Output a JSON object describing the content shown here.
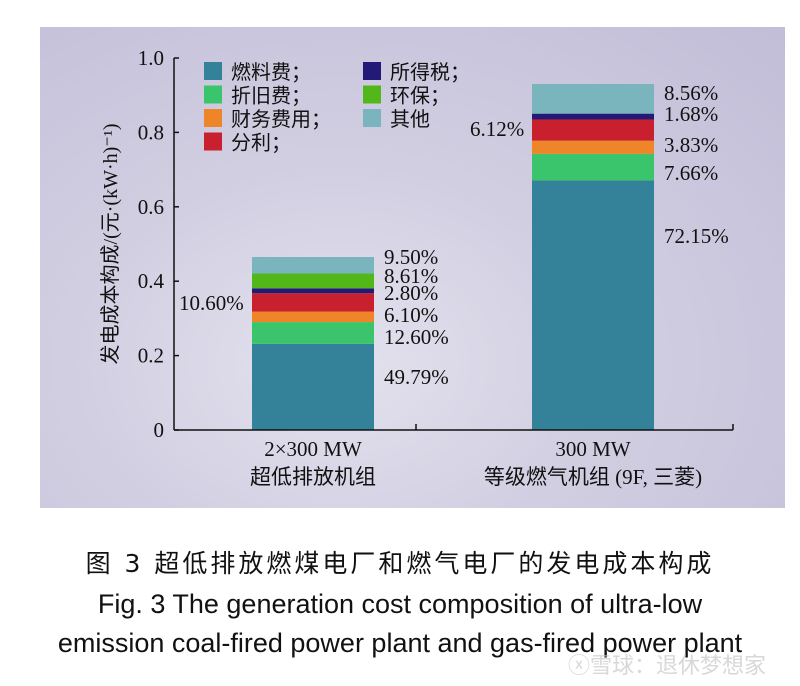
{
  "chart_data": {
    "type": "bar",
    "stacked": true,
    "ylabel": "发电成本构成/(元·(kW·h)⁻¹)",
    "xlabel": "",
    "ylim": [
      0,
      1.0
    ],
    "yticks": [
      0,
      0.2,
      0.4,
      0.6,
      0.8,
      1.0
    ],
    "ytick_labels": [
      "0",
      "0.2",
      "0.4",
      "0.6",
      "0.8",
      "1.0"
    ],
    "categories": [
      {
        "line1": "2×300 MW",
        "line2": "超低排放机组"
      },
      {
        "line1": "300 MW",
        "line2": "等级燃气机组 (9F, 三菱)"
      }
    ],
    "totals": [
      0.465,
      0.93
    ],
    "series": [
      {
        "name": "燃料费；",
        "color": "#33829a",
        "percent": [
          49.79,
          72.15
        ],
        "labels": [
          "49.79%",
          "72.15%"
        ],
        "label_side": "right"
      },
      {
        "name": "折旧费；",
        "color": "#3ac46c",
        "percent": [
          12.6,
          7.66
        ],
        "labels": [
          "12.60%",
          "7.66%"
        ],
        "label_side": "right"
      },
      {
        "name": "财务费用；",
        "color": "#ee8629",
        "percent": [
          6.1,
          3.83
        ],
        "labels": [
          "6.10%",
          "3.83%"
        ],
        "label_side": "right"
      },
      {
        "name": "分利；",
        "color": "#c8202e",
        "percent": [
          10.6,
          6.12
        ],
        "labels": [
          "10.60%",
          "6.12%"
        ],
        "label_side": "left"
      },
      {
        "name": "所得税；",
        "color": "#231a78",
        "percent": [
          2.8,
          1.68
        ],
        "labels": [
          "2.80%",
          "1.68%"
        ],
        "label_side": "right"
      },
      {
        "name": "环保；",
        "color": "#52b718",
        "percent": [
          8.61,
          0
        ],
        "labels": [
          "8.61%",
          ""
        ],
        "label_side": "right"
      },
      {
        "name": "其他",
        "color": "#7ab4bd",
        "percent": [
          9.5,
          8.56
        ],
        "labels": [
          "9.50%",
          "8.56%"
        ],
        "label_side": "right"
      }
    ],
    "legend": {
      "position": "top-left",
      "columns": [
        [
          "燃料费；",
          "折旧费；",
          "财务费用；",
          "分利；"
        ],
        [
          "所得税；",
          "环保；",
          "其他"
        ]
      ]
    },
    "grid": false
  },
  "caption": {
    "cn": "图 3  超低排放燃煤电厂和燃气电厂的发电成本构成",
    "en_line1": "Fig. 3    The generation cost composition of ultra-low",
    "en_line2": "emission coal-fired power plant and gas-fired power plant"
  },
  "watermark": "ⓧ雪球：退休梦想家"
}
